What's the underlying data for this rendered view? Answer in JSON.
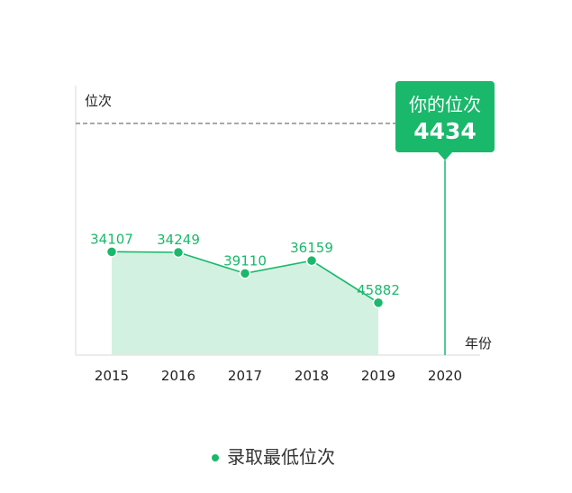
{
  "chart_data": {
    "type": "line",
    "ylabel": "位次",
    "xlabel": "年份",
    "categories": [
      "2015",
      "2016",
      "2017",
      "2018",
      "2019",
      "2020"
    ],
    "series": [
      {
        "name": "录取最低位次",
        "x": [
          "2015",
          "2016",
          "2017",
          "2018",
          "2019"
        ],
        "values": [
          34107,
          34249,
          39110,
          36159,
          45882
        ]
      }
    ],
    "ylim": [
      58000,
      -4300
    ],
    "y_reversed": true,
    "user_rank": {
      "label": "你的位次",
      "value": 4434,
      "year": "2020"
    },
    "legend": {
      "position": "bottom",
      "label": "录取最低位次"
    },
    "colors": {
      "line": "#1ab86b",
      "area": "#d2f1e1",
      "marker": "#1ab86b",
      "user_marker": "#d9363e",
      "dashed": "#666666",
      "axis": "#e6e6e6"
    },
    "grid": false
  }
}
